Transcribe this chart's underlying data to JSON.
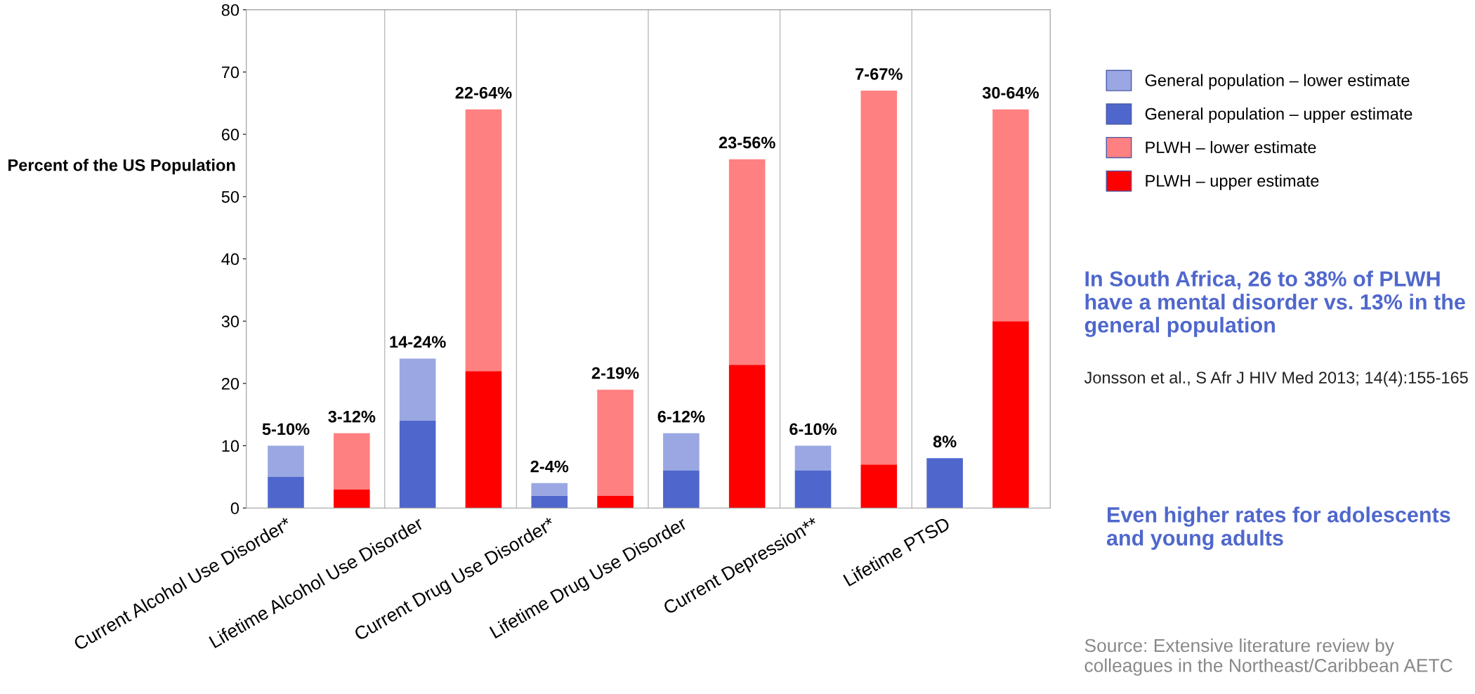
{
  "chart_data": {
    "type": "bar",
    "stacked": true,
    "ylabel": "Percent of the US Population",
    "categories": [
      "Current Alcohol Use Disorder*",
      null,
      "Lifetime Alcohol Use Disorder",
      null,
      "Current Drug Use Disorder*",
      null,
      "Lifetime Drug Use Disorder",
      null,
      "Current Depression**",
      null,
      "Lifetime PTSD",
      null
    ],
    "series": [
      {
        "name": "General population – upper estimate",
        "color": "#4f67cc",
        "values": [
          5,
          null,
          14,
          null,
          2,
          null,
          6,
          null,
          6,
          null,
          8,
          null
        ]
      },
      {
        "name": "General population – lower estimate",
        "color": "#9aa7e2",
        "values": [
          5,
          null,
          10,
          null,
          2,
          null,
          6,
          null,
          4,
          null,
          null,
          null
        ]
      },
      {
        "name": "PLWH – upper estimate",
        "color": "#ff0000",
        "values": [
          null,
          3,
          null,
          22,
          null,
          2,
          null,
          23,
          null,
          7,
          null,
          30
        ]
      },
      {
        "name": "PLWH – lower estimate",
        "color": "#ff8080",
        "values": [
          null,
          9,
          null,
          42,
          null,
          17,
          null,
          33,
          null,
          60,
          null,
          34
        ]
      }
    ],
    "totals": [
      "5-10%",
      "3-12%",
      "14-24%",
      "22-64%",
      "2-4%",
      "2-19%",
      "6-12%",
      "23-56%",
      "6-10%",
      "7-67%",
      "8%",
      "30-64%"
    ],
    "ylim": [
      0,
      80
    ],
    "yticks": [
      0,
      10,
      20,
      30,
      40,
      50,
      60,
      70,
      80
    ],
    "legend": "right",
    "annotations": [
      "In South Africa, 26 to 38% of PLWH have a mental disorder vs. 13% in the general population",
      "Jonsson et al., S Afr J HIV Med 2013; 14(4):155-165",
      "Even higher rates for adolescents and young adults",
      "Source: Extensive literature review by colleagues in the Northeast/Caribbean AETC"
    ]
  }
}
